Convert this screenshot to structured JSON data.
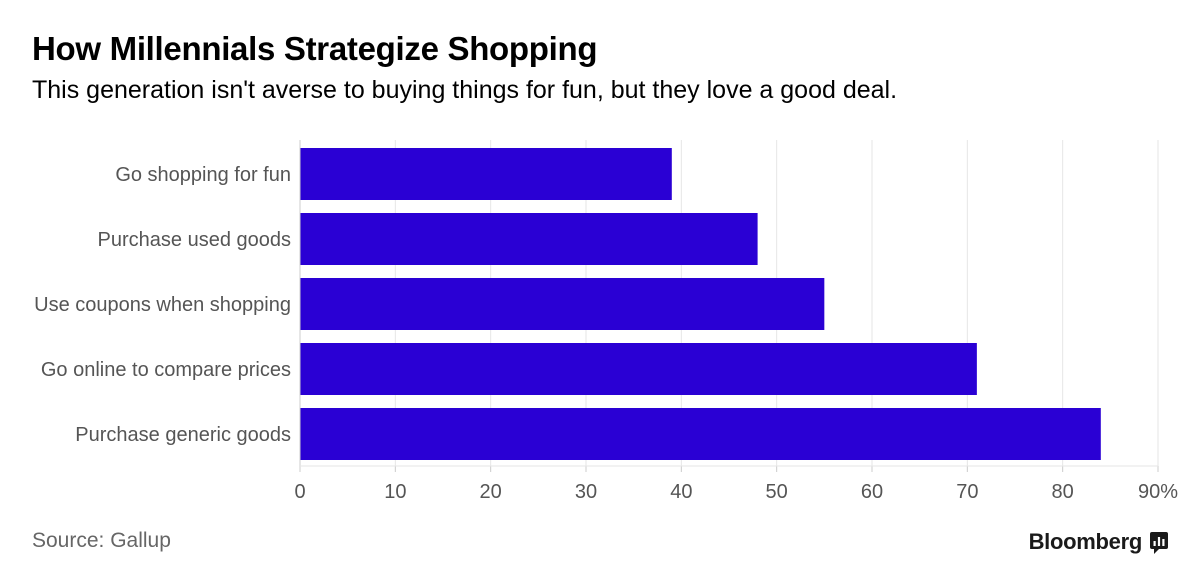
{
  "chart_data": {
    "type": "bar",
    "orientation": "horizontal",
    "title": "How Millennials Strategize Shopping",
    "subtitle": "This generation isn't averse to buying things for fun, but they love a good deal.",
    "categories": [
      "Go shopping for fun",
      "Purchase used goods",
      "Use coupons when shopping",
      "Go online to compare prices",
      "Purchase generic goods"
    ],
    "values": [
      39,
      48,
      55,
      71,
      84
    ],
    "xlim": [
      0,
      90
    ],
    "x_ticks": [
      "0",
      "10",
      "20",
      "30",
      "40",
      "50",
      "60",
      "70",
      "80",
      "90%"
    ],
    "grid": true,
    "bar_color": "#2a00d4"
  },
  "footer": {
    "source": "Source: Gallup",
    "brand": "Bloomberg"
  },
  "colors": {
    "grid": "#e6e6e6",
    "axis": "#cccccc",
    "label": "#555555"
  }
}
